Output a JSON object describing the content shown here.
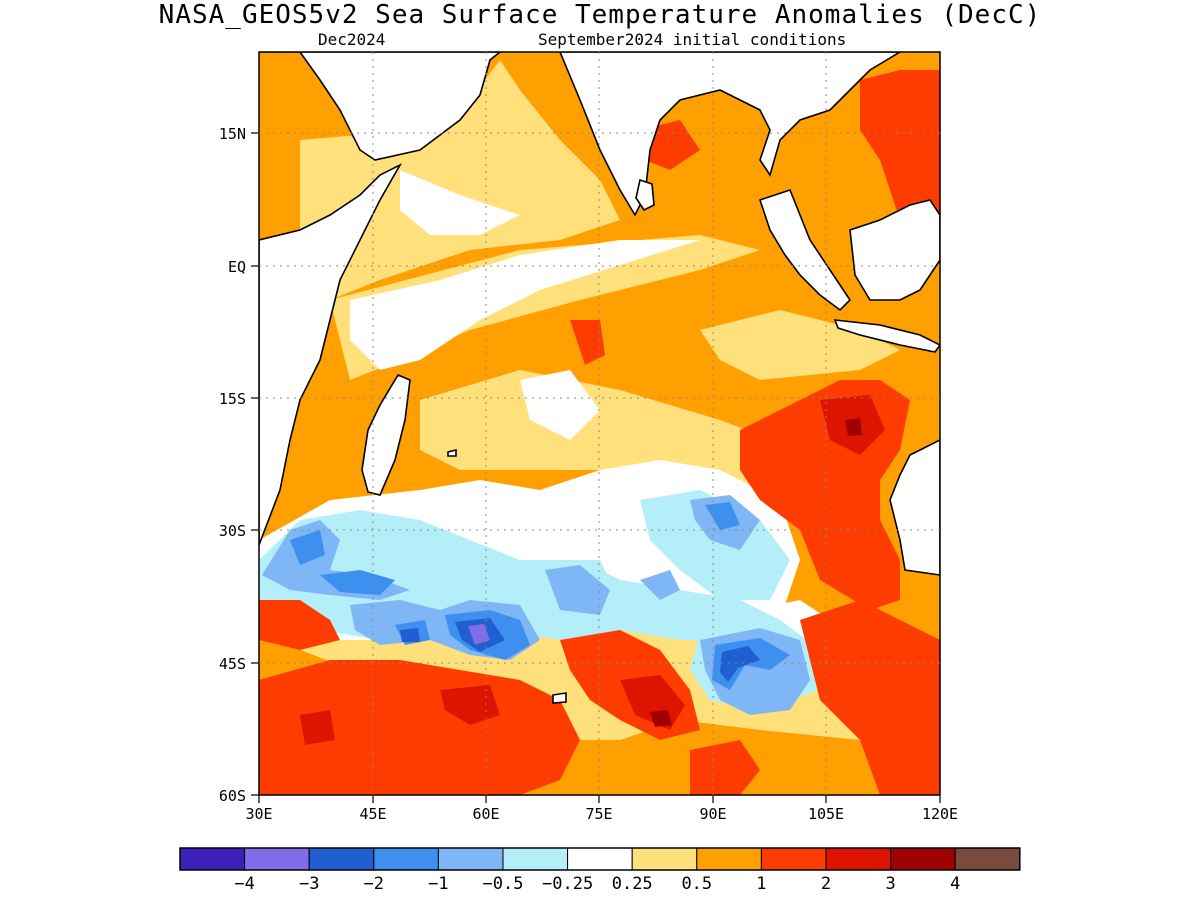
{
  "header": {
    "title": "NASA_GEOS5v2 Sea Surface Temperature Anomalies (DecC)",
    "valid_month": "Dec2024",
    "init": "September2024 initial conditions"
  },
  "map": {
    "region": "Indian Ocean",
    "lon_labels": [
      "30E",
      "45E",
      "60E",
      "75E",
      "90E",
      "105E",
      "120E"
    ],
    "lat_labels": [
      "15N",
      "EQ",
      "15S",
      "30S",
      "45S",
      "60S"
    ]
  },
  "colorbar": {
    "levels": [
      "−4",
      "−3",
      "−2",
      "−1",
      "−0.5",
      "−0.25",
      "0.25",
      "0.5",
      "1",
      "2",
      "3",
      "4"
    ],
    "colors": [
      "#3b1fb8",
      "#7f6ee8",
      "#1f5fd1",
      "#3d8ff0",
      "#7fb6f5",
      "#b4eef8",
      "#ffffff",
      "#ffe07a",
      "#ff9f00",
      "#ff3c00",
      "#dc1400",
      "#a00000",
      "#7a4a3e"
    ]
  }
}
